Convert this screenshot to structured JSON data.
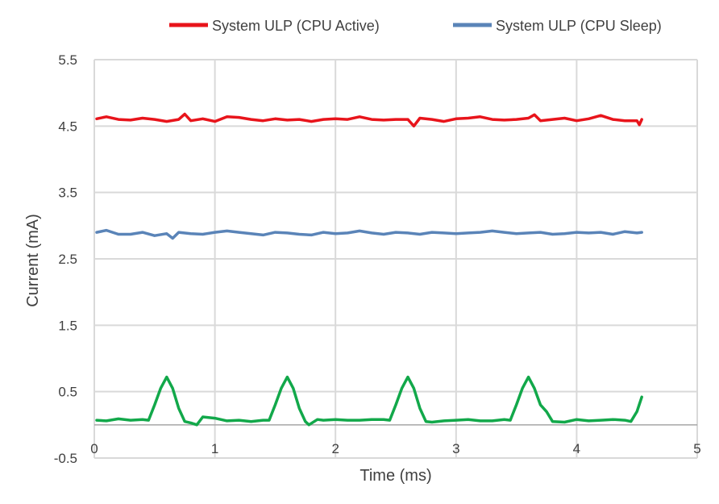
{
  "chart_data": {
    "type": "line",
    "title": "",
    "xlabel": "Time (ms)",
    "ylabel": "Current (mA)",
    "xlim": [
      0,
      5
    ],
    "ylim": [
      -0.5,
      5.5
    ],
    "x_ticks": [
      "0",
      "1",
      "2",
      "3",
      "4",
      "5"
    ],
    "y_ticks": [
      "5.5",
      "4.5",
      "3.5",
      "2.5",
      "1.5",
      "0.5",
      "-0.5"
    ],
    "grid": true,
    "legend_position": "top",
    "series": [
      {
        "name": "System ULP (CPU Active)",
        "color": "#e8141b",
        "x": [
          0.02,
          0.1,
          0.2,
          0.3,
          0.4,
          0.5,
          0.6,
          0.7,
          0.75,
          0.8,
          0.9,
          1.0,
          1.1,
          1.2,
          1.3,
          1.4,
          1.5,
          1.6,
          1.7,
          1.8,
          1.9,
          2.0,
          2.1,
          2.2,
          2.3,
          2.4,
          2.5,
          2.6,
          2.65,
          2.7,
          2.8,
          2.9,
          3.0,
          3.1,
          3.2,
          3.3,
          3.4,
          3.5,
          3.6,
          3.65,
          3.7,
          3.8,
          3.9,
          4.0,
          4.1,
          4.2,
          4.3,
          4.4,
          4.5,
          4.52,
          4.54
        ],
        "values": [
          4.61,
          4.64,
          4.6,
          4.59,
          4.62,
          4.6,
          4.57,
          4.6,
          4.68,
          4.58,
          4.61,
          4.57,
          4.64,
          4.63,
          4.6,
          4.58,
          4.61,
          4.59,
          4.6,
          4.57,
          4.6,
          4.61,
          4.6,
          4.64,
          4.6,
          4.59,
          4.6,
          4.6,
          4.5,
          4.62,
          4.6,
          4.57,
          4.61,
          4.62,
          4.64,
          4.6,
          4.59,
          4.6,
          4.62,
          4.67,
          4.58,
          4.6,
          4.62,
          4.58,
          4.61,
          4.66,
          4.6,
          4.58,
          4.58,
          4.52,
          4.6
        ]
      },
      {
        "name": "System ULP (CPU Sleep)",
        "color": "#5a84b8",
        "x": [
          0.02,
          0.1,
          0.2,
          0.3,
          0.4,
          0.5,
          0.6,
          0.65,
          0.7,
          0.8,
          0.9,
          1.0,
          1.1,
          1.2,
          1.3,
          1.4,
          1.5,
          1.6,
          1.7,
          1.8,
          1.9,
          2.0,
          2.1,
          2.2,
          2.3,
          2.4,
          2.5,
          2.6,
          2.7,
          2.8,
          2.9,
          3.0,
          3.1,
          3.2,
          3.3,
          3.4,
          3.5,
          3.6,
          3.7,
          3.8,
          3.9,
          4.0,
          4.1,
          4.2,
          4.3,
          4.4,
          4.5,
          4.54
        ],
        "values": [
          2.9,
          2.93,
          2.87,
          2.87,
          2.9,
          2.85,
          2.88,
          2.81,
          2.9,
          2.88,
          2.87,
          2.9,
          2.92,
          2.9,
          2.88,
          2.86,
          2.9,
          2.89,
          2.87,
          2.86,
          2.9,
          2.88,
          2.89,
          2.92,
          2.89,
          2.87,
          2.9,
          2.89,
          2.87,
          2.9,
          2.89,
          2.88,
          2.89,
          2.9,
          2.92,
          2.9,
          2.88,
          2.89,
          2.9,
          2.87,
          2.88,
          2.9,
          2.89,
          2.9,
          2.87,
          2.91,
          2.89,
          2.9
        ]
      },
      {
        "name": "",
        "color": "#12a84a",
        "x": [
          0.02,
          0.1,
          0.2,
          0.3,
          0.4,
          0.45,
          0.5,
          0.55,
          0.6,
          0.65,
          0.7,
          0.75,
          0.8,
          0.85,
          0.9,
          1.0,
          1.1,
          1.2,
          1.3,
          1.4,
          1.45,
          1.5,
          1.55,
          1.6,
          1.65,
          1.7,
          1.75,
          1.78,
          1.85,
          1.9,
          2.0,
          2.1,
          2.2,
          2.3,
          2.4,
          2.45,
          2.5,
          2.55,
          2.6,
          2.65,
          2.7,
          2.75,
          2.8,
          2.9,
          3.0,
          3.1,
          3.2,
          3.3,
          3.4,
          3.45,
          3.5,
          3.55,
          3.6,
          3.65,
          3.7,
          3.75,
          3.8,
          3.9,
          4.0,
          4.1,
          4.2,
          4.3,
          4.4,
          4.45,
          4.5,
          4.54
        ],
        "values": [
          0.07,
          0.06,
          0.09,
          0.07,
          0.08,
          0.07,
          0.3,
          0.55,
          0.72,
          0.55,
          0.25,
          0.05,
          0.03,
          0.0,
          0.12,
          0.1,
          0.06,
          0.07,
          0.05,
          0.07,
          0.07,
          0.3,
          0.55,
          0.72,
          0.55,
          0.25,
          0.05,
          0.0,
          0.08,
          0.07,
          0.08,
          0.07,
          0.07,
          0.08,
          0.08,
          0.07,
          0.3,
          0.55,
          0.72,
          0.55,
          0.25,
          0.05,
          0.04,
          0.06,
          0.07,
          0.08,
          0.06,
          0.06,
          0.08,
          0.07,
          0.3,
          0.55,
          0.72,
          0.55,
          0.3,
          0.2,
          0.05,
          0.04,
          0.08,
          0.06,
          0.07,
          0.08,
          0.07,
          0.05,
          0.2,
          0.42
        ]
      }
    ]
  }
}
